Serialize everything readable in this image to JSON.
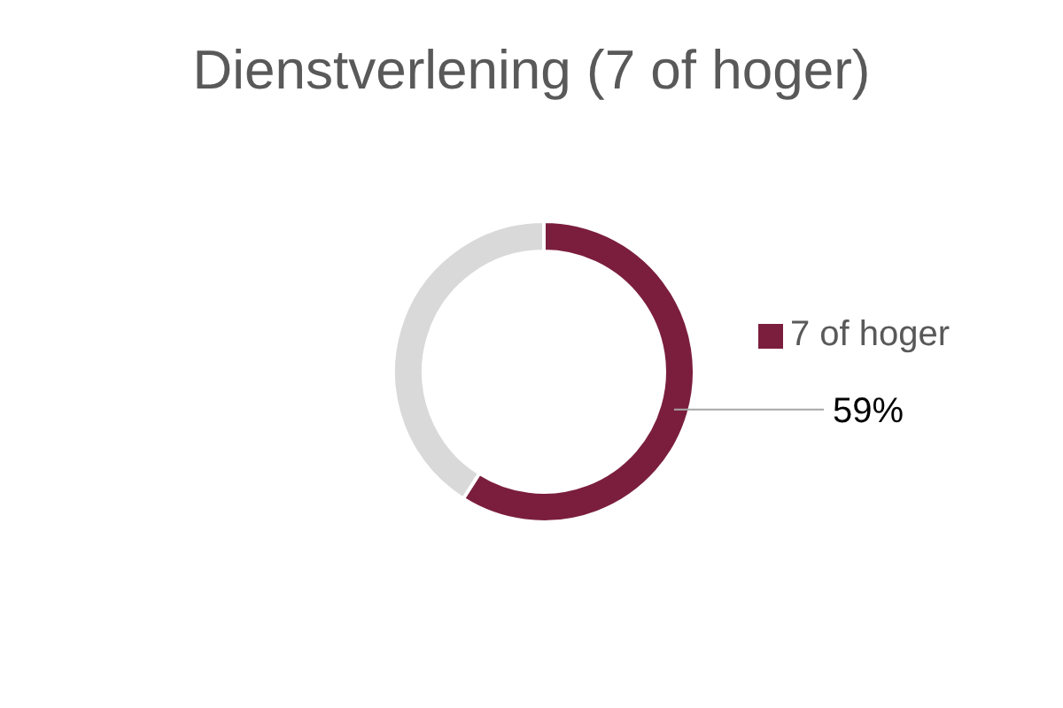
{
  "chart_data": {
    "type": "donut",
    "title": "Dienstverlening (7 of hoger)",
    "categories": [
      "7 of hoger",
      null
    ],
    "values": [
      59,
      41
    ],
    "colors": [
      "#7b1e3e",
      "#d9d9d9"
    ],
    "value_labels": [
      "59%",
      null
    ],
    "legend": "right"
  }
}
